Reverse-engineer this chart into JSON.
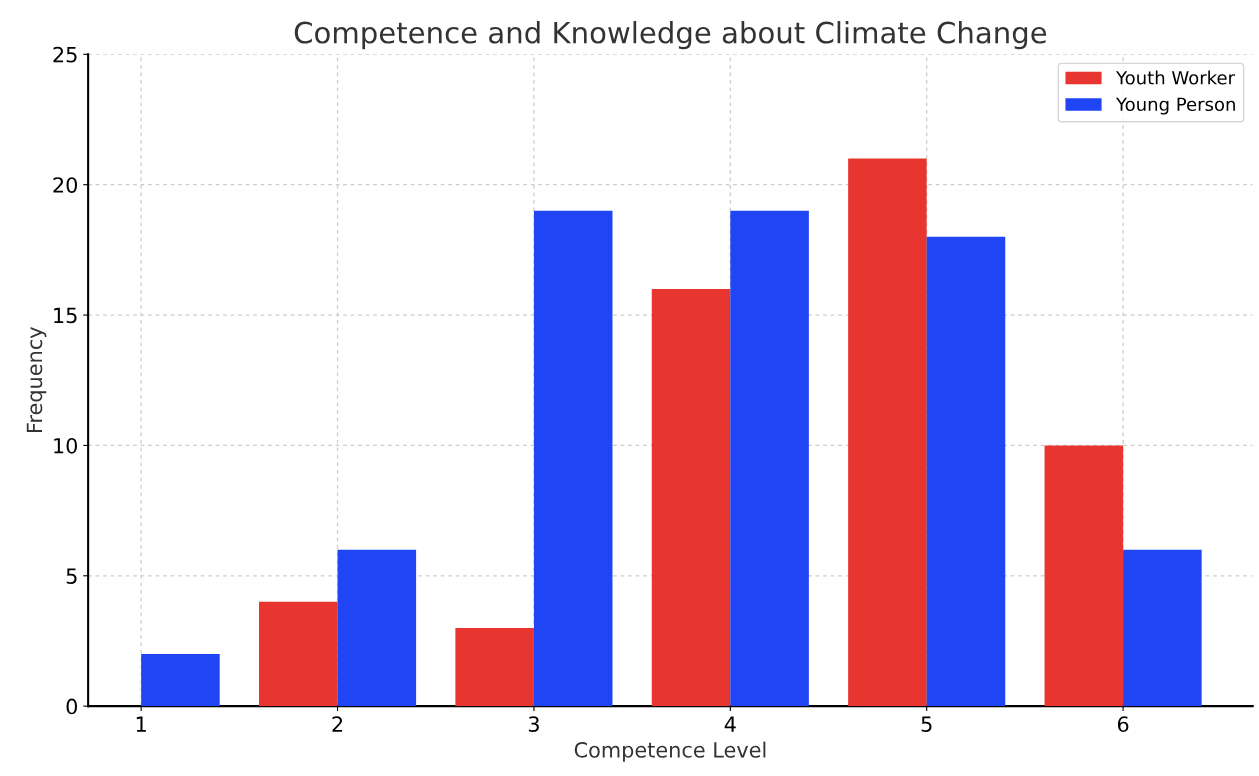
{
  "chart_data": {
    "type": "bar",
    "title": "Competence and Knowledge about Climate Change",
    "xlabel": "Competence Level",
    "ylabel": "Frequency",
    "x": [
      1,
      2,
      3,
      4,
      5,
      6
    ],
    "series": [
      {
        "name": "Youth Worker",
        "color": "#e8352f",
        "values": [
          0,
          4,
          3,
          16,
          21,
          10
        ]
      },
      {
        "name": "Young Person",
        "color": "#1f45f5",
        "values": [
          2,
          6,
          19,
          19,
          18,
          6
        ]
      }
    ],
    "xlim": [
      0.73,
      6.66
    ],
    "xticks": [
      1,
      2,
      3,
      4,
      5,
      6
    ],
    "ylim": [
      0,
      25
    ],
    "yticks": [
      0,
      5,
      10,
      15,
      20,
      25
    ],
    "grid": true,
    "legend": "top right"
  }
}
